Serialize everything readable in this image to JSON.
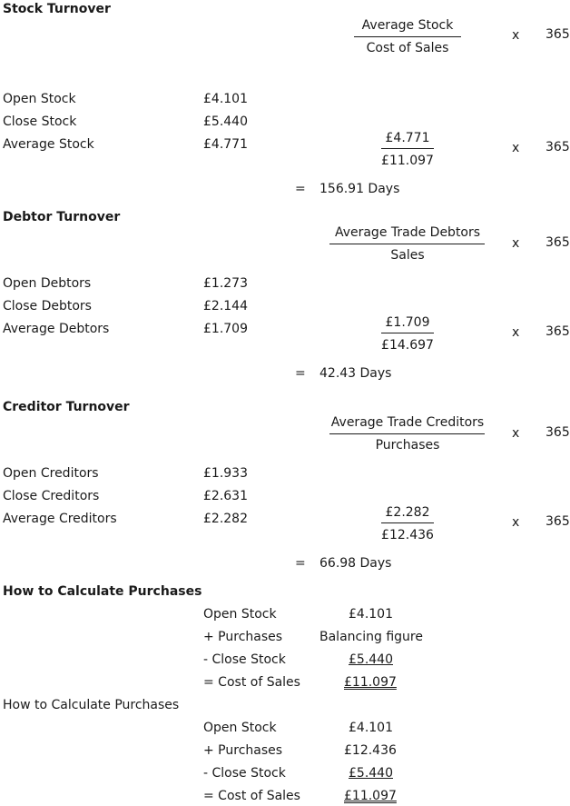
{
  "stock": {
    "title": "Stock Turnover",
    "formula_num": "Average Stock",
    "formula_den": "Cost of Sales",
    "times": "x",
    "days": "365",
    "rows": [
      {
        "label": "Open Stock",
        "value": "£4.101"
      },
      {
        "label": "Close Stock",
        "value": "£5.440"
      },
      {
        "label": "Average Stock",
        "value": "£4.771"
      }
    ],
    "calc_num": "£4.771",
    "calc_den": "£11.097",
    "equals": "=",
    "result": "156.91 Days"
  },
  "debtor": {
    "title": "Debtor Turnover",
    "formula_num": "Average Trade Debtors",
    "formula_den": "Sales",
    "times": "x",
    "days": "365",
    "rows": [
      {
        "label": "Open Debtors",
        "value": "£1.273"
      },
      {
        "label": "Close Debtors",
        "value": "£2.144"
      },
      {
        "label": "Average Debtors",
        "value": "£1.709"
      }
    ],
    "calc_num": "£1.709",
    "calc_den": "£14.697",
    "equals": "=",
    "result": "42.43 Days"
  },
  "creditor": {
    "title": "Creditor Turnover",
    "formula_num": "Average Trade Creditors",
    "formula_den": "Purchases",
    "times": "x",
    "days": "365",
    "rows": [
      {
        "label": "Open Creditors",
        "value": "£1.933"
      },
      {
        "label": "Close Creditors",
        "value": "£2.631"
      },
      {
        "label": "Average Creditors",
        "value": "£2.282"
      }
    ],
    "calc_num": "£2.282",
    "calc_den": "£12.436",
    "equals": "=",
    "result": "66.98 Days"
  },
  "purchases1": {
    "title": "How to Calculate Purchases",
    "rows": [
      {
        "label": "Open Stock",
        "value": "£4.101"
      },
      {
        "label": "+ Purchases",
        "value": "Balancing figure"
      },
      {
        "label": "- Close Stock",
        "value": "£5.440"
      },
      {
        "label": "= Cost of Sales",
        "value": "£11.097"
      }
    ]
  },
  "purchases2": {
    "title": "How to Calculate Purchases",
    "rows": [
      {
        "label": "Open Stock",
        "value": "£4.101"
      },
      {
        "label": "+ Purchases",
        "value": "£12.436"
      },
      {
        "label": "- Close Stock",
        "value": "£5.440"
      },
      {
        "label": "= Cost of Sales",
        "value": "£11.097"
      }
    ]
  }
}
